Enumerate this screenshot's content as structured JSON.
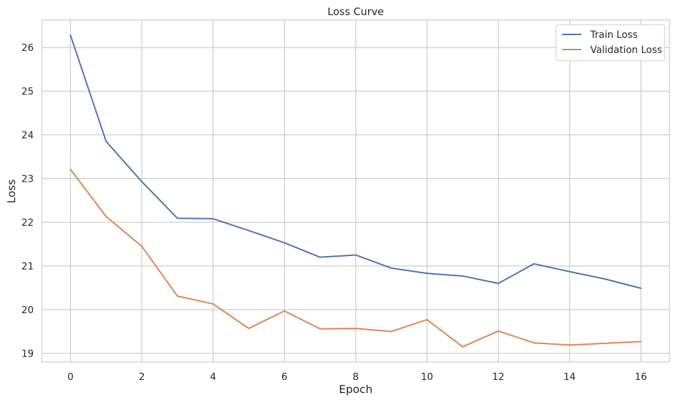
{
  "chart_data": {
    "type": "line",
    "title": "Loss Curve",
    "xlabel": "Epoch",
    "ylabel": "Loss",
    "x": [
      0,
      1,
      2,
      3,
      4,
      5,
      6,
      7,
      8,
      9,
      10,
      11,
      12,
      13,
      14,
      15,
      16
    ],
    "xticks": [
      0,
      2,
      4,
      6,
      8,
      10,
      12,
      14,
      16
    ],
    "yticks": [
      19,
      20,
      21,
      22,
      23,
      24,
      25,
      26
    ],
    "xlim": [
      -0.8,
      16.8
    ],
    "ylim": [
      18.8,
      26.63
    ],
    "grid": true,
    "legend_position": "top-right",
    "series": [
      {
        "name": "Train Loss",
        "color": "#4c72b0",
        "values": [
          26.28,
          23.85,
          22.93,
          22.09,
          22.08,
          21.81,
          21.53,
          21.2,
          21.25,
          20.95,
          20.83,
          20.77,
          20.6,
          21.05,
          20.87,
          20.7,
          20.49
        ]
      },
      {
        "name": "Validation Loss",
        "color": "#dd8452",
        "values": [
          23.21,
          22.13,
          21.45,
          20.31,
          20.13,
          19.57,
          19.97,
          19.56,
          19.57,
          19.5,
          19.77,
          19.15,
          19.51,
          19.24,
          19.19,
          19.23,
          19.27
        ]
      }
    ]
  }
}
